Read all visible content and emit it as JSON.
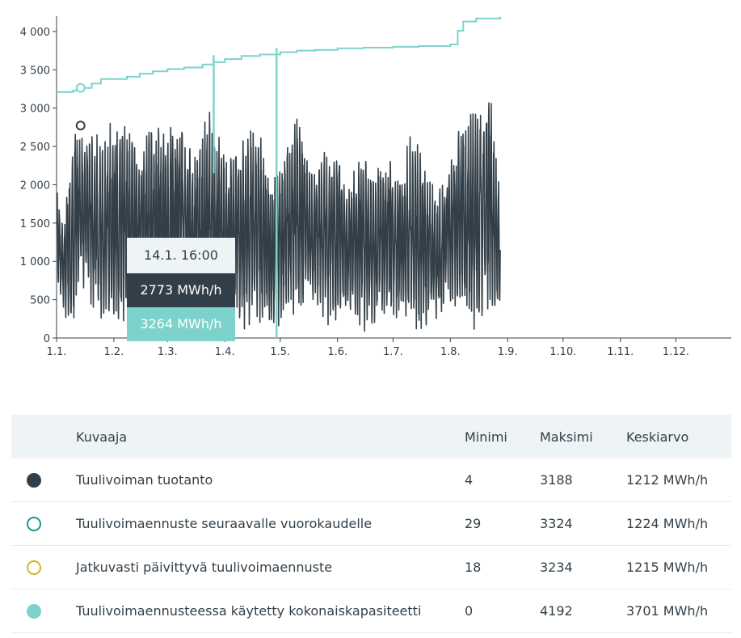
{
  "chart_data": {
    "type": "line",
    "title": "",
    "xlabel": "",
    "ylabel": "",
    "ylim": [
      0,
      4200
    ],
    "y_ticks": [
      "4 000",
      "3 500",
      "3 000",
      "2 500",
      "2 000",
      "1 500",
      "1 000",
      "500",
      "0"
    ],
    "y_tick_values": [
      4000,
      3500,
      3000,
      2500,
      2000,
      1500,
      1000,
      500,
      0
    ],
    "x_ticks": [
      "1.1.",
      "1.2.",
      "1.3.",
      "1.4.",
      "1.5.",
      "1.6.",
      "1.7.",
      "1.8.",
      "1.9.",
      "1.10.",
      "1.11.",
      "1.12."
    ],
    "x_range": [
      "2024-01-01",
      "2024-12-31"
    ],
    "grid": false,
    "series": [
      {
        "name": "Tuulivoiman tuotanto",
        "color": "#333f48",
        "summary": {
          "min": 4,
          "max": 3188,
          "mean": 1212
        },
        "approx_envelope": {
          "x": [
            "2024-01-01",
            "2024-01-05",
            "2024-01-10",
            "2024-01-14",
            "2024-01-20",
            "2024-01-25",
            "2024-02-01",
            "2024-02-08",
            "2024-02-15",
            "2024-02-22",
            "2024-03-01",
            "2024-03-08",
            "2024-03-15",
            "2024-03-22",
            "2024-03-29",
            "2024-04-05",
            "2024-04-12",
            "2024-04-19",
            "2024-04-26",
            "2024-05-03",
            "2024-05-10",
            "2024-05-17",
            "2024-05-24",
            "2024-05-31",
            "2024-06-07",
            "2024-06-14",
            "2024-06-21",
            "2024-06-28",
            "2024-07-05",
            "2024-07-12",
            "2024-07-19",
            "2024-07-26",
            "2024-08-02",
            "2024-08-09",
            "2024-08-16",
            "2024-08-23",
            "2024-08-28"
          ],
          "high": [
            2000,
            1600,
            2700,
            2900,
            2800,
            2600,
            2900,
            2850,
            2550,
            2900,
            2700,
            3050,
            2400,
            3100,
            2700,
            2400,
            2700,
            2900,
            2100,
            2400,
            3200,
            2200,
            2400,
            2700,
            2000,
            2500,
            2300,
            2450,
            2200,
            2800,
            2200,
            2000,
            2500,
            2900,
            3100,
            3200,
            1800
          ],
          "low": [
            800,
            200,
            100,
            600,
            300,
            100,
            100,
            200,
            500,
            100,
            400,
            200,
            300,
            100,
            200,
            300,
            100,
            200,
            50,
            200,
            100,
            500,
            200,
            100,
            300,
            50,
            100,
            300,
            200,
            50,
            100,
            200,
            500,
            100,
            100,
            300,
            300
          ]
        }
      },
      {
        "name": "Tuulivoimaennuste seuraavalle vuorokaudelle",
        "color": "#1a9a8f",
        "summary": {
          "min": 29,
          "max": 3324,
          "mean": 1224
        }
      },
      {
        "name": "Jatkuvasti päivittyvä tuulivoimaennuste",
        "color": "#d4b722",
        "summary": {
          "min": 18,
          "max": 3234,
          "mean": 1215
        }
      },
      {
        "name": "Tuulivoimaennusteessa käytetty kokonaiskapasiteetti",
        "color": "#7dd3cc",
        "summary": {
          "min": 0,
          "max": 4192,
          "mean": 3701
        },
        "steps": {
          "x": [
            "2024-01-01",
            "2024-01-10",
            "2024-01-14",
            "2024-01-20",
            "2024-01-25",
            "2024-02-08",
            "2024-02-15",
            "2024-02-22",
            "2024-03-01",
            "2024-03-10",
            "2024-03-20",
            "2024-03-26",
            "2024-04-01",
            "2024-04-10",
            "2024-04-20",
            "2024-05-01",
            "2024-05-10",
            "2024-05-20",
            "2024-06-01",
            "2024-06-15",
            "2024-07-01",
            "2024-07-15",
            "2024-08-01",
            "2024-08-05",
            "2024-08-08",
            "2024-08-15",
            "2024-08-28"
          ],
          "values": [
            3210,
            3230,
            3264,
            3320,
            3380,
            3410,
            3450,
            3480,
            3510,
            3530,
            3570,
            3600,
            3640,
            3680,
            3700,
            3730,
            3750,
            3760,
            3780,
            3790,
            3800,
            3810,
            3830,
            4010,
            4130,
            4170,
            4192
          ]
        },
        "dips": [
          {
            "x": "2024-03-26",
            "value": 2150
          },
          {
            "x": "2024-04-29",
            "value": 0
          }
        ]
      }
    ],
    "markers": [
      {
        "series": "Tuulivoiman tuotanto",
        "x": "2024-01-14",
        "value": 2773
      },
      {
        "series": "Tuulivoimaennusteessa käytetty kokonaiskapasiteetti",
        "x": "2024-01-14",
        "value": 3264
      }
    ]
  },
  "tooltip": {
    "date": "14.1. 16:00",
    "production": "2773 MWh/h",
    "capacity": "3264 MWh/h"
  },
  "legend_table": {
    "headers": {
      "name": "Kuvaaja",
      "min": "Minimi",
      "max": "Maksimi",
      "mean": "Keskiarvo"
    },
    "rows": [
      {
        "name": "Tuulivoiman tuotanto",
        "min": "4",
        "max": "3188",
        "mean": "1212 MWh/h",
        "color": "#333f48",
        "style": "filled"
      },
      {
        "name": "Tuulivoimaennuste seuraavalle vuorokaudelle",
        "min": "29",
        "max": "3324",
        "mean": "1224 MWh/h",
        "color": "#1a9a8f",
        "style": "outline"
      },
      {
        "name": "Jatkuvasti päivittyvä tuulivoimaennuste",
        "min": "18",
        "max": "3234",
        "mean": "1215 MWh/h",
        "color": "#d4b722",
        "style": "outline"
      },
      {
        "name": "Tuulivoimaennusteessa käytetty kokonaiskapasiteetti",
        "min": "0",
        "max": "4192",
        "mean": "3701 MWh/h",
        "color": "#7dd3cc",
        "style": "filled"
      }
    ]
  }
}
